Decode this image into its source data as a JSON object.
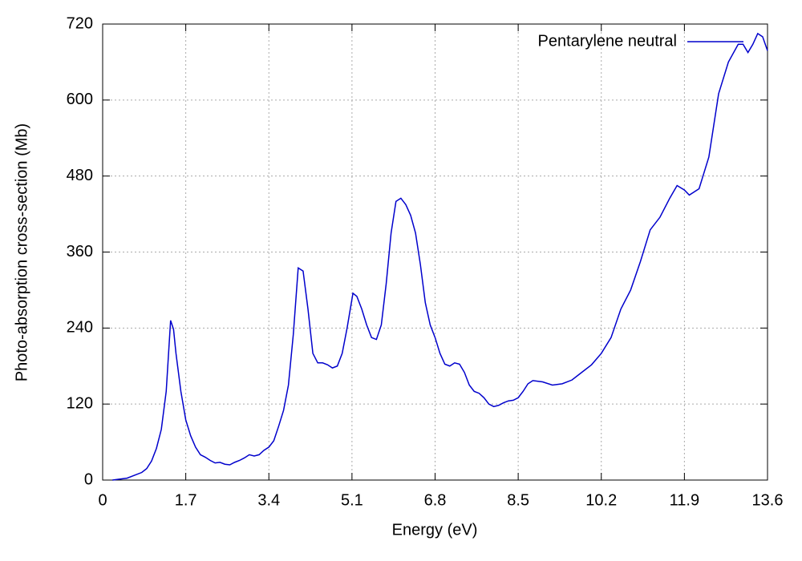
{
  "chart_data": {
    "type": "line",
    "xlabel": "Energy (eV)",
    "ylabel": "Photo-absorption cross-section (Mb)",
    "xlim": [
      0,
      13.6
    ],
    "ylim": [
      0,
      720
    ],
    "xticks": [
      0,
      1.7,
      3.4,
      5.1,
      6.8,
      8.5,
      10.2,
      11.9,
      13.6
    ],
    "yticks": [
      0,
      120,
      240,
      360,
      480,
      600,
      720
    ],
    "grid": true,
    "legend": "upper right",
    "series": [
      {
        "name": "Pentarylene neutral",
        "color": "#0000cc",
        "x": [
          0.2,
          0.5,
          0.8,
          0.9,
          1.0,
          1.1,
          1.2,
          1.3,
          1.39,
          1.45,
          1.5,
          1.6,
          1.7,
          1.8,
          1.9,
          2.0,
          2.1,
          2.2,
          2.3,
          2.4,
          2.5,
          2.6,
          2.7,
          2.8,
          2.9,
          3.0,
          3.1,
          3.2,
          3.3,
          3.4,
          3.5,
          3.6,
          3.7,
          3.8,
          3.9,
          4.0,
          4.1,
          4.2,
          4.3,
          4.4,
          4.5,
          4.6,
          4.7,
          4.8,
          4.9,
          5.0,
          5.12,
          5.2,
          5.3,
          5.4,
          5.5,
          5.6,
          5.7,
          5.8,
          5.9,
          6.0,
          6.1,
          6.2,
          6.3,
          6.4,
          6.5,
          6.6,
          6.7,
          6.8,
          6.9,
          7.0,
          7.1,
          7.2,
          7.3,
          7.4,
          7.5,
          7.6,
          7.7,
          7.8,
          7.9,
          8.0,
          8.1,
          8.2,
          8.3,
          8.4,
          8.5,
          8.6,
          8.7,
          8.8,
          9.0,
          9.2,
          9.4,
          9.6,
          9.8,
          10.0,
          10.2,
          10.4,
          10.6,
          10.8,
          11.0,
          11.2,
          11.4,
          11.6,
          11.75,
          11.9,
          12.0,
          12.2,
          12.4,
          12.6,
          12.8,
          13.0,
          13.1,
          13.2,
          13.3,
          13.4,
          13.5,
          13.6
        ],
        "values": [
          0,
          3,
          12,
          18,
          30,
          50,
          80,
          140,
          252,
          238,
          200,
          140,
          95,
          70,
          52,
          40,
          36,
          31,
          27,
          28,
          25,
          24,
          28,
          31,
          35,
          40,
          38,
          40,
          47,
          52,
          62,
          85,
          110,
          150,
          230,
          335,
          330,
          270,
          200,
          185,
          185,
          182,
          177,
          180,
          200,
          240,
          295,
          290,
          270,
          245,
          225,
          222,
          245,
          310,
          390,
          440,
          445,
          435,
          418,
          390,
          340,
          280,
          245,
          225,
          200,
          183,
          180,
          185,
          183,
          170,
          150,
          140,
          137,
          130,
          120,
          116,
          118,
          122,
          125,
          126,
          130,
          140,
          152,
          157,
          155,
          150,
          152,
          158,
          170,
          182,
          200,
          225,
          270,
          300,
          345,
          395,
          415,
          445,
          465,
          458,
          450,
          460,
          510,
          610,
          660,
          688,
          688,
          675,
          688,
          705,
          700,
          678
        ]
      }
    ]
  }
}
